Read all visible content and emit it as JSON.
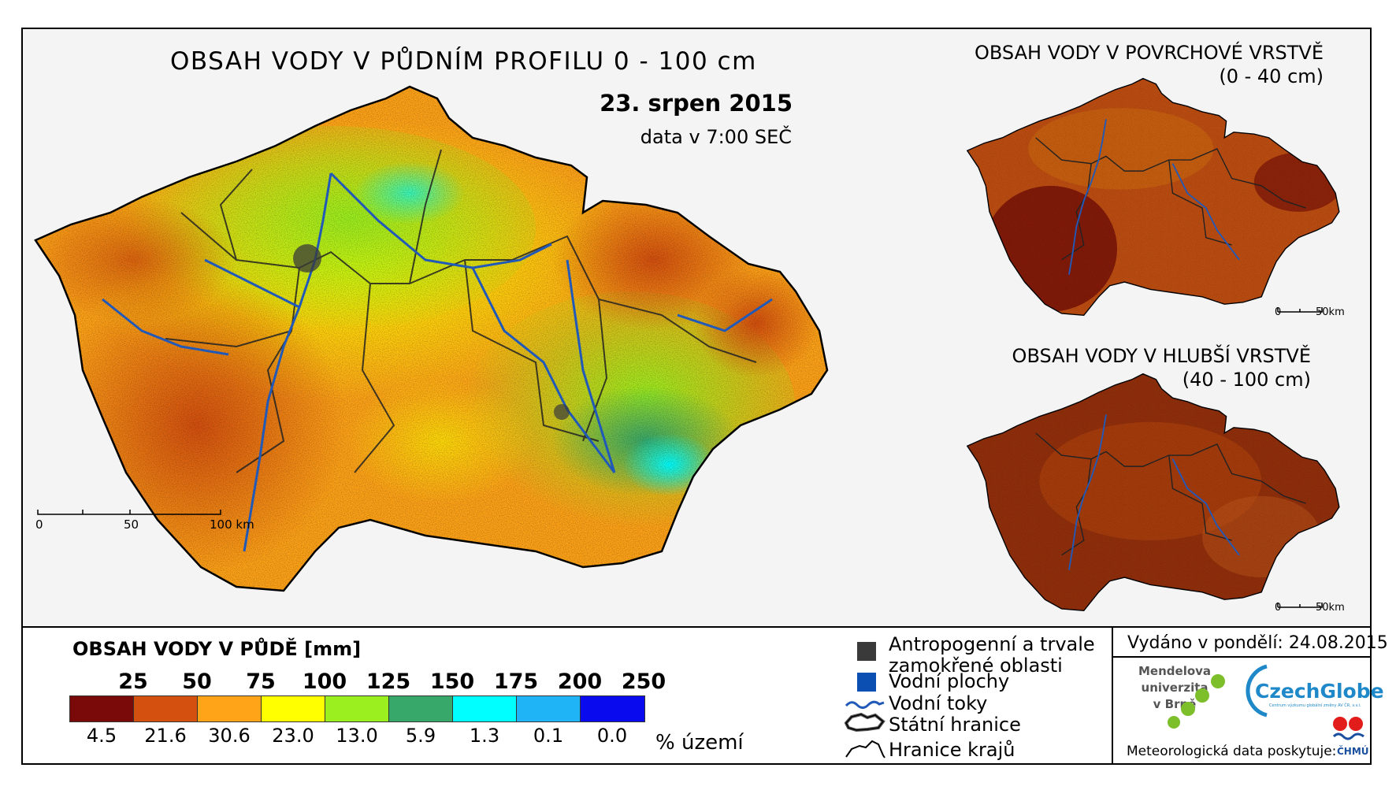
{
  "main": {
    "title": "OBSAH VODY V PŮDNÍM PROFILU 0 - 100 cm",
    "date": "23. srpen 2015",
    "time_note": "data v 7:00 SEČ",
    "scale": {
      "ticks": [
        "0",
        "50",
        "100 km"
      ]
    }
  },
  "inset_surface": {
    "title_line1": "OBSAH VODY V POVRCHOVÉ VRSTVĚ",
    "title_line2": "(0 - 40 cm)",
    "scale": {
      "ticks": [
        "0",
        "50km"
      ]
    },
    "dominant_color": "#b8460e"
  },
  "inset_deep": {
    "title_line1": "OBSAH VODY V HLUBŠÍ VRSTVĚ",
    "title_line2": "(40 - 100 cm)",
    "scale": {
      "ticks": [
        "0",
        "50km"
      ]
    },
    "dominant_color": "#8f2a0a"
  },
  "legend": {
    "title": "OBSAH VODY V PŮDĚ [mm]",
    "bounds": [
      "25",
      "50",
      "75",
      "100",
      "125",
      "150",
      "175",
      "200",
      "250"
    ],
    "classes": [
      {
        "color": "#7a0a0a",
        "percent": "4.5"
      },
      {
        "color": "#d4500f",
        "percent": "21.6"
      },
      {
        "color": "#ffa318",
        "percent": "30.6"
      },
      {
        "color": "#ffff00",
        "percent": "23.0"
      },
      {
        "color": "#9bef1f",
        "percent": "13.0"
      },
      {
        "color": "#37a86a",
        "percent": "5.9"
      },
      {
        "color": "#00ffff",
        "percent": "1.3"
      },
      {
        "color": "#1fb4f5",
        "percent": "0.1"
      },
      {
        "color": "#0a0aef",
        "percent": "0.0"
      }
    ],
    "unit": "% území"
  },
  "map_legend": {
    "urban_line1": "Antropogenní a trvale",
    "urban_line2": "zamokřené oblasti",
    "water_bodies": "Vodní plochy",
    "rivers": "Vodní toky",
    "state_border": "Státní hranice",
    "regions": "Hranice krajů",
    "urban_color": "#3a3a3a",
    "water_color": "#0b4fb3",
    "river_color": "#2159b8"
  },
  "footer": {
    "issued": "Vydáno v pondělí: 24.08.2015",
    "mendel_line1": "Mendelova",
    "mendel_line2": "univerzita",
    "mendel_line3": "v Brně",
    "czechglobe": "CzechGlobe",
    "czechglobe_sub": "Centrum výzkumu globální změny AV ČR, v.v.i.",
    "meteo": "Meteorologická data poskytuje:",
    "chmu": "ČHMÚ"
  }
}
